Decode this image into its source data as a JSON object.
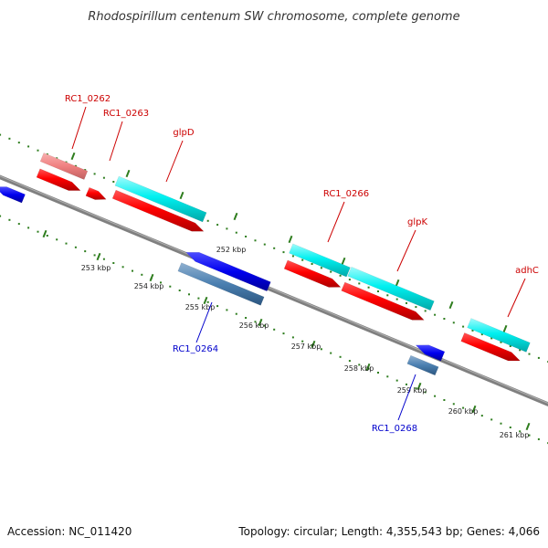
{
  "title": "Rhodospirillum centenum SW chromosome, complete genome",
  "footer": {
    "accession": "Accession: NC_011420",
    "topology": "Topology: circular; Length: 4,355,543 bp; Genes: 4,066"
  },
  "colors": {
    "backbone": "#808080",
    "tick": "#2e7d1e",
    "forward_gene": "#ff0000",
    "forward_cds": "#00e5e5",
    "forward_gene_faded": "#f08080",
    "reverse_gene": "#0000ee",
    "reverse_cds": "#4a7fb0",
    "forward_label": "#cc0000",
    "reverse_label": "#0000cc"
  },
  "scale_labels": [
    "252 kbp",
    "253 kbp",
    "254 kbp",
    "255 kbp",
    "256 kbp",
    "257 kbp",
    "258 kbp",
    "259 kbp",
    "260 kbp",
    "261 kbp"
  ],
  "gene_labels": [
    {
      "id": "rc1-0262",
      "text": "RC1_0262",
      "strand": "forward"
    },
    {
      "id": "rc1-0263",
      "text": "RC1_0263",
      "strand": "forward"
    },
    {
      "id": "glpd",
      "text": "glpD",
      "strand": "forward"
    },
    {
      "id": "rc1-0266",
      "text": "RC1_0266",
      "strand": "forward"
    },
    {
      "id": "glpk",
      "text": "glpK",
      "strand": "forward"
    },
    {
      "id": "adhc",
      "text": "adhC",
      "strand": "forward"
    },
    {
      "id": "rc1-0264",
      "text": "RC1_0264",
      "strand": "reverse"
    },
    {
      "id": "rc1-0268",
      "text": "RC1_0268",
      "strand": "reverse"
    }
  ]
}
